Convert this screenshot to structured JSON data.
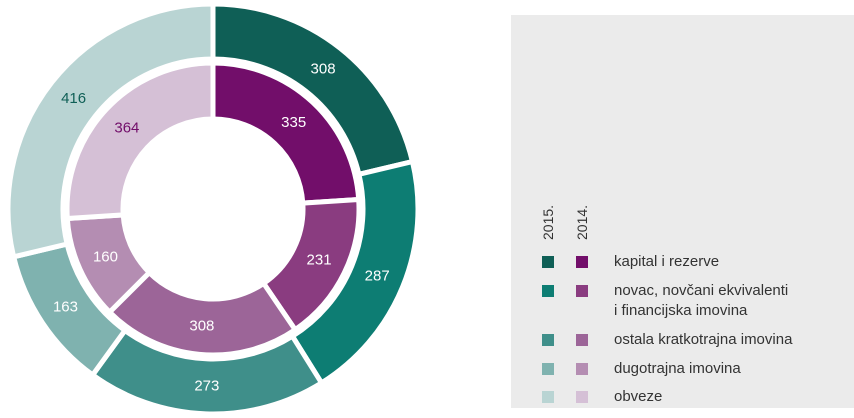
{
  "chart_data": {
    "type": "donut",
    "categories": [
      "kapital i rezerve",
      "novac, novčani ekvivalenti\ni financijska imovina",
      "ostala kratkotrajna imovina",
      "dugotrajna imovina",
      "obveze"
    ],
    "series": [
      {
        "name": "2015.",
        "colors": [
          "#0f5f56",
          "#0d7d73",
          "#3f8f8a",
          "#7fb2af",
          "#b9d4d3"
        ],
        "values": [
          308,
          287,
          273,
          163,
          416
        ]
      },
      {
        "name": "2014.",
        "colors": [
          "#720e6a",
          "#8a3c80",
          "#9c6598",
          "#b48db2",
          "#d5c0d6"
        ],
        "values": [
          335,
          231,
          308,
          160,
          364
        ]
      }
    ]
  }
}
